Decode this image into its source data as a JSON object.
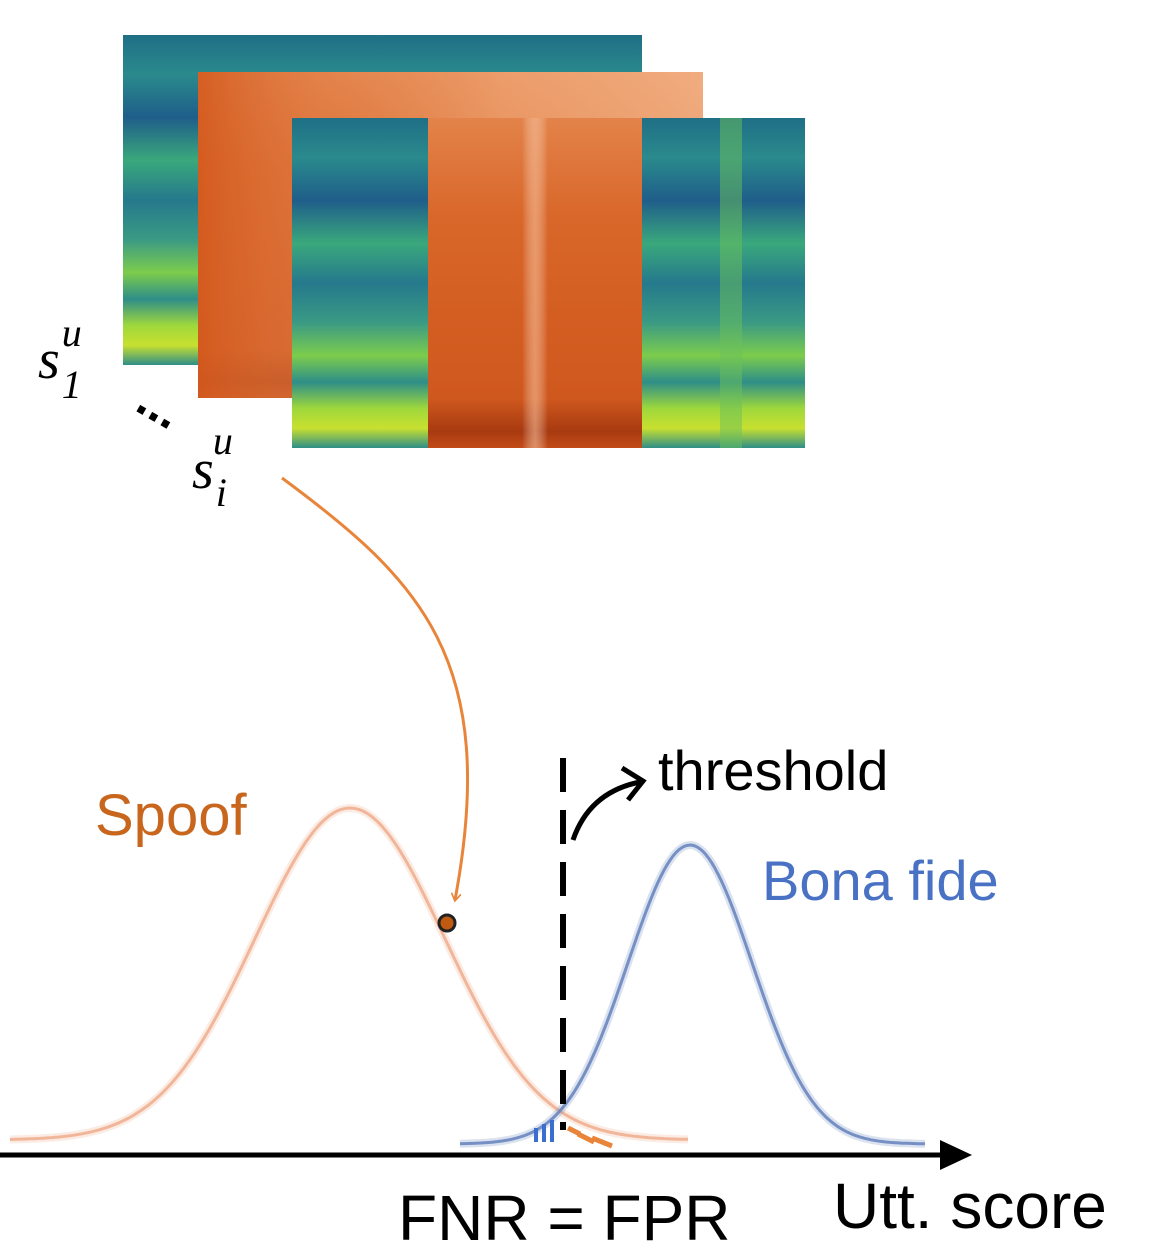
{
  "frames": {
    "first": {
      "base": "s",
      "sub": "1",
      "sup": "u"
    },
    "ellipsis": "...",
    "last": {
      "base": "s",
      "sub": "i",
      "sup": "u"
    }
  },
  "threshold": "threshold",
  "spoof": "Spoof",
  "bona_fide": "Bona fide",
  "operating_point": "FNR = FPR",
  "axis_label": "Utt. score"
}
